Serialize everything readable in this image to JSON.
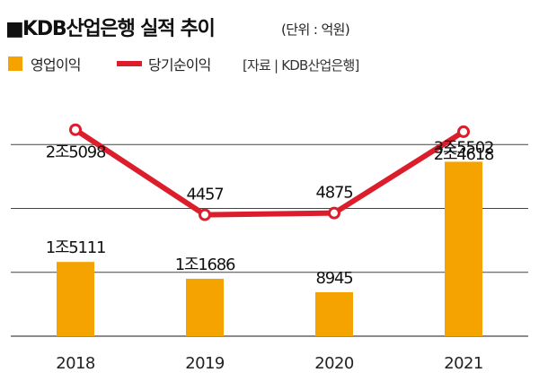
{
  "header": {
    "title_marker": "■",
    "title": "KDB산업은행 실적 추이",
    "unit": "(단위 : 억원)"
  },
  "legend": {
    "bar_label": "영업이익",
    "line_label": "당기순이익",
    "source": "[자료 | KDB산업은행]"
  },
  "colors": {
    "bar": "#f5a300",
    "line": "#dc1d2b",
    "marker_fill": "#ffffff",
    "gridline": "#444444",
    "axis": "#666666",
    "text": "#111111"
  },
  "chart_data": {
    "type": "bar",
    "title": "KDB산업은행 실적 추이",
    "unit": "억원",
    "categories": [
      "2018",
      "2019",
      "2020",
      "2021"
    ],
    "series": [
      {
        "name": "영업이익",
        "type": "bar",
        "values": [
          15111,
          11686,
          8945,
          35502
        ],
        "labels": [
          "1조5111",
          "1조1686",
          "8945",
          "3조5502"
        ]
      },
      {
        "name": "당기순이익",
        "type": "line",
        "values": [
          25098,
          4457,
          4875,
          24618
        ],
        "labels": [
          "2조5098",
          "4457",
          "4875",
          "2조4618"
        ]
      }
    ],
    "bar_ylim": [
      0,
      52000
    ],
    "line_ylim": [
      -25000,
      37000
    ],
    "grid": "horizontal",
    "legend_position": "top-left"
  }
}
